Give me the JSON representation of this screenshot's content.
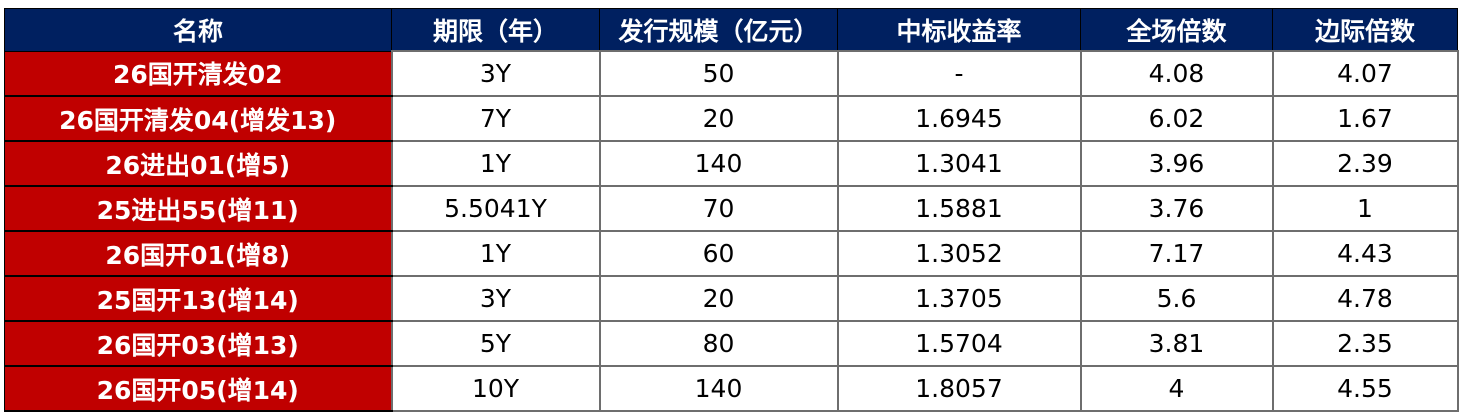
{
  "table": {
    "headers": [
      "名称",
      "期限（年）",
      "发行规模（亿元）",
      "中标收益率",
      "全场倍数",
      "边际倍数"
    ],
    "colors": {
      "header_bg": "#002060",
      "name_bg": "#c00000"
    },
    "rows": [
      [
        "26国开清发02",
        "3Y",
        "50",
        "-",
        "4.08",
        "4.07"
      ],
      [
        "26国开清发04(增发13)",
        "7Y",
        "20",
        "1.6945",
        "6.02",
        "1.67"
      ],
      [
        "26进出01(增5)",
        "1Y",
        "140",
        "1.3041",
        "3.96",
        "2.39"
      ],
      [
        "25进出55(增11)",
        "5.5041Y",
        "70",
        "1.5881",
        "3.76",
        "1"
      ],
      [
        "26国开01(增8)",
        "1Y",
        "60",
        "1.3052",
        "7.17",
        "4.43"
      ],
      [
        "25国开13(增14)",
        "3Y",
        "20",
        "1.3705",
        "5.6",
        "4.78"
      ],
      [
        "26国开03(增13)",
        "5Y",
        "80",
        "1.5704",
        "3.81",
        "2.35"
      ],
      [
        "26国开05(增14)",
        "10Y",
        "140",
        "1.8057",
        "4",
        "4.55"
      ]
    ]
  }
}
